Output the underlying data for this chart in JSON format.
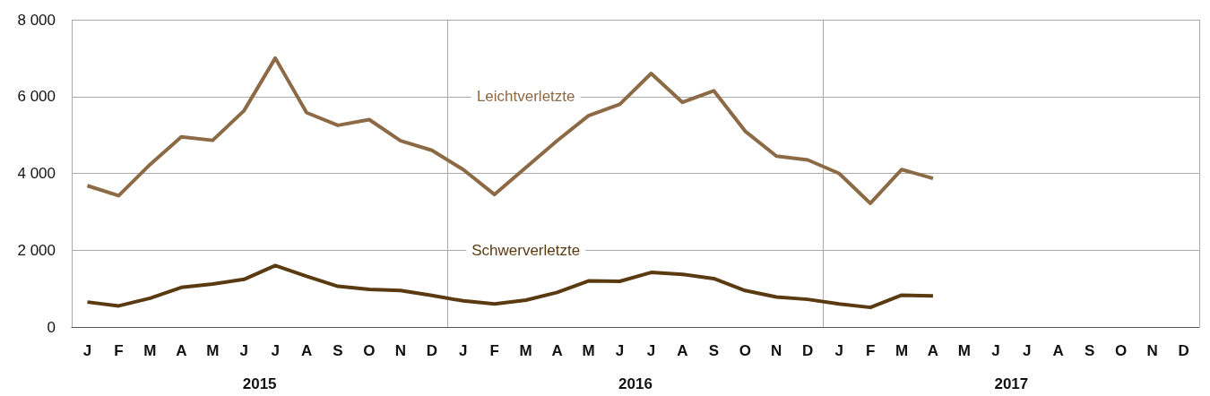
{
  "chart_data": {
    "type": "line",
    "categories": [
      "J",
      "F",
      "M",
      "A",
      "M",
      "J",
      "J",
      "A",
      "S",
      "O",
      "N",
      "D",
      "J",
      "F",
      "M",
      "A",
      "M",
      "J",
      "J",
      "A",
      "S",
      "O",
      "N",
      "D",
      "J",
      "F",
      "M",
      "A",
      "M",
      "J",
      "J",
      "A",
      "S",
      "O",
      "N",
      "D"
    ],
    "series": [
      {
        "name": "Leichtverletzte",
        "color": "#8c6a45",
        "values": [
          3680,
          3420,
          4230,
          4950,
          4860,
          5630,
          7000,
          5580,
          5250,
          5400,
          4850,
          4600,
          4100,
          3450,
          4150,
          4850,
          5500,
          5800,
          6600,
          5850,
          6150,
          5100,
          4450,
          4350,
          4000,
          3220,
          4100,
          3870,
          null,
          null,
          null,
          null,
          null,
          null,
          null,
          null
        ]
      },
      {
        "name": "Schwerverletzte",
        "color": "#5a3a10",
        "values": [
          650,
          550,
          750,
          1030,
          1120,
          1240,
          1600,
          1320,
          1060,
          980,
          950,
          820,
          680,
          600,
          700,
          900,
          1200,
          1190,
          1420,
          1370,
          1260,
          950,
          780,
          720,
          600,
          510,
          830,
          810,
          null,
          null,
          null,
          null,
          null,
          null,
          null,
          null
        ]
      }
    ],
    "annotations": [
      "2015",
      "2016",
      "2017"
    ],
    "ylim": [
      0,
      8000
    ],
    "yticks": [
      {
        "value": 0,
        "label": "0"
      },
      {
        "value": 2000,
        "label": "2 000"
      },
      {
        "value": 4000,
        "label": "4 000"
      },
      {
        "value": 6000,
        "label": "6 000"
      },
      {
        "value": 8000,
        "label": "8 000"
      }
    ],
    "grid": "y",
    "marker": "none"
  }
}
